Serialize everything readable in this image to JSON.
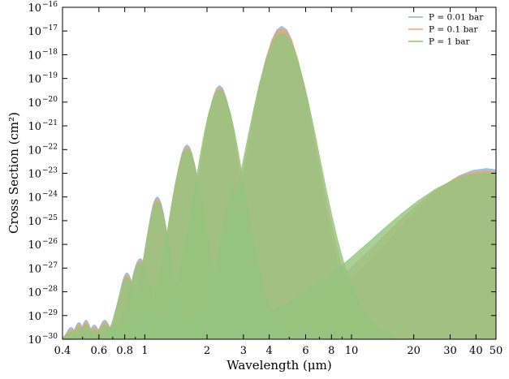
{
  "chart_data": {
    "type": "area",
    "xlabel": "Wavelength (μm)",
    "ylabel": "Cross Section (cm²)",
    "xscale": "log",
    "yscale": "log",
    "xlim": [
      0.4,
      50
    ],
    "ylim": [
      1e-30,
      1e-16
    ],
    "xticks": [
      {
        "value": 0.4,
        "label": "0.4"
      },
      {
        "value": 0.6,
        "label": "0.6"
      },
      {
        "value": 0.8,
        "label": "0.8"
      },
      {
        "value": 1,
        "label": "1"
      },
      {
        "value": 2,
        "label": "2"
      },
      {
        "value": 3,
        "label": "3"
      },
      {
        "value": 4,
        "label": "4"
      },
      {
        "value": 6,
        "label": "6"
      },
      {
        "value": 8,
        "label": "8"
      },
      {
        "value": 10,
        "label": "10"
      },
      {
        "value": 20,
        "label": "20"
      },
      {
        "value": 30,
        "label": "30"
      },
      {
        "value": 40,
        "label": "40"
      },
      {
        "value": 50,
        "label": "50"
      }
    ],
    "yticks": [
      {
        "value": -30,
        "base": "10",
        "exp": "−30"
      },
      {
        "value": -29,
        "base": "10",
        "exp": "−29"
      },
      {
        "value": -28,
        "base": "10",
        "exp": "−28"
      },
      {
        "value": -27,
        "base": "10",
        "exp": "−27"
      },
      {
        "value": -26,
        "base": "10",
        "exp": "−26"
      },
      {
        "value": -25,
        "base": "10",
        "exp": "−25"
      },
      {
        "value": -24,
        "base": "10",
        "exp": "−24"
      },
      {
        "value": -23,
        "base": "10",
        "exp": "−23"
      },
      {
        "value": -22,
        "base": "10",
        "exp": "−22"
      },
      {
        "value": -21,
        "base": "10",
        "exp": "−21"
      },
      {
        "value": -20,
        "base": "10",
        "exp": "−20"
      },
      {
        "value": -19,
        "base": "10",
        "exp": "−19"
      },
      {
        "value": -18,
        "base": "10",
        "exp": "−18"
      },
      {
        "value": -17,
        "base": "10",
        "exp": "−17"
      },
      {
        "value": -16,
        "base": "10",
        "exp": "−16"
      }
    ],
    "legend_position": "top-right",
    "series": [
      {
        "name": "P = 0.01 bar",
        "color": "#8fb4d9",
        "bands": [
          {
            "center": 0.44,
            "width": 0.02,
            "peak": -29.5
          },
          {
            "center": 0.48,
            "width": 0.02,
            "peak": -29.3
          },
          {
            "center": 0.52,
            "width": 0.02,
            "peak": -29.2
          },
          {
            "center": 0.57,
            "width": 0.02,
            "peak": -29.4
          },
          {
            "center": 0.64,
            "width": 0.025,
            "peak": -29.2
          },
          {
            "center": 0.72,
            "width": 0.025,
            "peak": -29.3
          },
          {
            "center": 0.82,
            "width": 0.04,
            "peak": -27.2
          },
          {
            "center": 0.95,
            "width": 0.05,
            "peak": -26.6
          },
          {
            "center": 1.15,
            "width": 0.06,
            "peak": -24.0
          },
          {
            "center": 1.6,
            "width": 0.08,
            "peak": -21.8
          },
          {
            "center": 2.3,
            "width": 0.1,
            "peak": -19.3
          },
          {
            "center": 2.7,
            "width": 0.06,
            "peak": -23.5
          },
          {
            "center": 4.6,
            "width": 0.16,
            "peak": -16.8
          },
          {
            "center": 45,
            "width": 0.45,
            "peak": -22.8
          }
        ]
      },
      {
        "name": "P = 0.1 bar",
        "color": "#e8a56b",
        "bands": [
          {
            "center": 0.44,
            "width": 0.02,
            "peak": -29.6
          },
          {
            "center": 0.48,
            "width": 0.02,
            "peak": -29.4
          },
          {
            "center": 0.52,
            "width": 0.02,
            "peak": -29.3
          },
          {
            "center": 0.57,
            "width": 0.02,
            "peak": -29.5
          },
          {
            "center": 0.64,
            "width": 0.025,
            "peak": -29.3
          },
          {
            "center": 0.72,
            "width": 0.025,
            "peak": -29.4
          },
          {
            "center": 0.82,
            "width": 0.04,
            "peak": -27.3
          },
          {
            "center": 0.95,
            "width": 0.05,
            "peak": -26.7
          },
          {
            "center": 1.15,
            "width": 0.06,
            "peak": -24.1
          },
          {
            "center": 1.6,
            "width": 0.085,
            "peak": -21.9
          },
          {
            "center": 2.3,
            "width": 0.11,
            "peak": -19.4
          },
          {
            "center": 2.7,
            "width": 0.065,
            "peak": -23.6
          },
          {
            "center": 4.6,
            "width": 0.17,
            "peak": -16.9
          },
          {
            "center": 45,
            "width": 0.5,
            "peak": -22.9
          }
        ]
      },
      {
        "name": "P = 1 bar",
        "color": "#94c47f",
        "bands": [
          {
            "center": 0.44,
            "width": 0.02,
            "peak": -29.7
          },
          {
            "center": 0.48,
            "width": 0.02,
            "peak": -29.5
          },
          {
            "center": 0.52,
            "width": 0.02,
            "peak": -29.4
          },
          {
            "center": 0.57,
            "width": 0.02,
            "peak": -29.6
          },
          {
            "center": 0.64,
            "width": 0.025,
            "peak": -29.4
          },
          {
            "center": 0.72,
            "width": 0.025,
            "peak": -29.5
          },
          {
            "center": 0.82,
            "width": 0.045,
            "peak": -27.4
          },
          {
            "center": 0.95,
            "width": 0.055,
            "peak": -26.8
          },
          {
            "center": 1.15,
            "width": 0.065,
            "peak": -24.2
          },
          {
            "center": 1.6,
            "width": 0.09,
            "peak": -22.0
          },
          {
            "center": 2.3,
            "width": 0.12,
            "peak": -19.5
          },
          {
            "center": 2.7,
            "width": 0.07,
            "peak": -23.7
          },
          {
            "center": 4.6,
            "width": 0.18,
            "peak": -17.1
          },
          {
            "center": 45,
            "width": 0.55,
            "peak": -23.0
          }
        ]
      }
    ]
  }
}
